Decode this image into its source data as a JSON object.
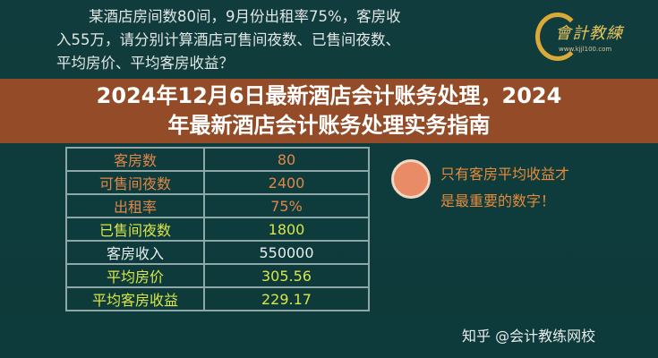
{
  "question": {
    "lines": [
      "某酒店房间数80间，9月份出租率75%，客房收",
      "入55万，请分别计算酒店可售间夜数、已售间夜数、",
      "平均房价、平均客房收益？"
    ]
  },
  "logo": {
    "text": "會計教練",
    "url": "www.kjjl100.com"
  },
  "table": {
    "rows": [
      {
        "label": "客房数",
        "value": "80",
        "color": "orange"
      },
      {
        "label": "可售间夜数",
        "value": "2400",
        "color": "orange"
      },
      {
        "label": "出租率",
        "value": "75%",
        "color": "orange"
      },
      {
        "label": "已售间夜数",
        "value": "1800",
        "color": "green"
      },
      {
        "label": "客房收入",
        "value": "550000",
        "color": "white"
      },
      {
        "label": "平均房价",
        "value": "305.56",
        "color": "green"
      },
      {
        "label": "平均客房收益",
        "value": "229.17",
        "color": "green"
      }
    ]
  },
  "tip": {
    "line1": "只有客房平均收益才",
    "line2": "是最重要的数字！",
    "icon": "lightbulb-icon"
  },
  "title": {
    "line1": "2024年12月6日最新酒店会计账务处理，2024",
    "line2": "年最新酒店会计账务处理实务指南"
  },
  "watermark": "知乎 @会计教练网校",
  "colors": {
    "background": "#0f3b3c",
    "banner": "#9e4e26",
    "orange": "#e0874a",
    "green": "#d8e64a"
  }
}
